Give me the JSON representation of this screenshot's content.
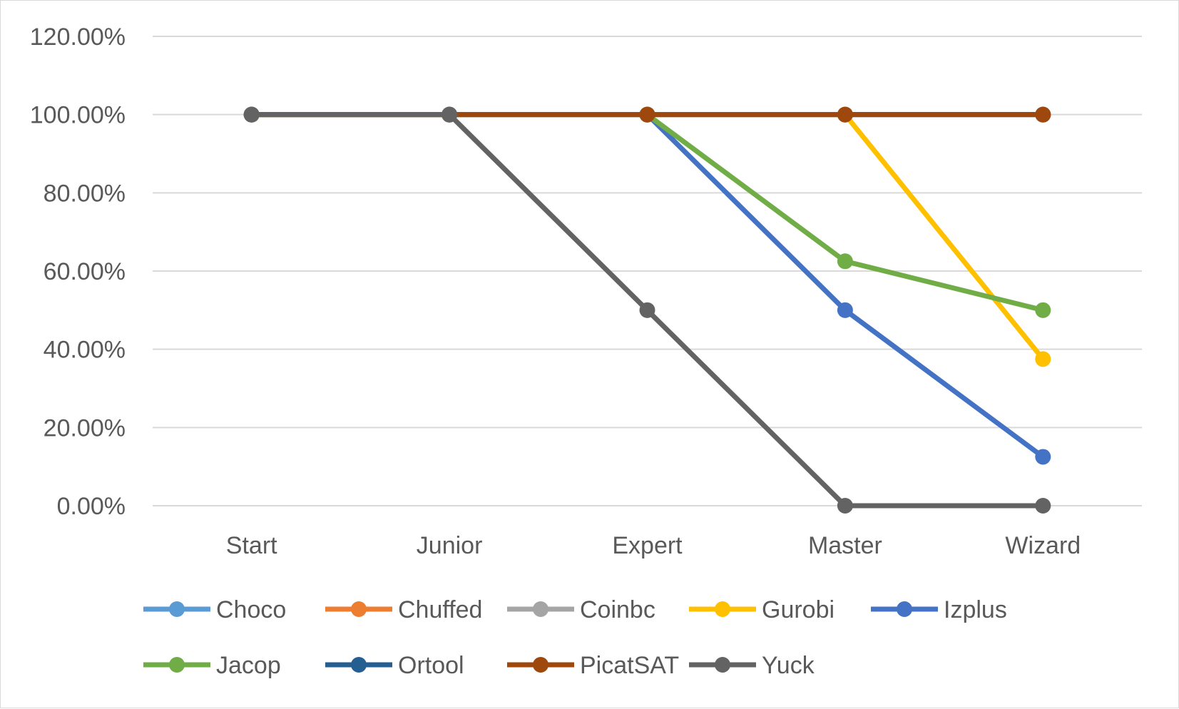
{
  "chart_data": {
    "type": "line",
    "title": "",
    "xlabel": "",
    "ylabel": "",
    "categories": [
      "Start",
      "Junior",
      "Expert",
      "Master",
      "Wizard"
    ],
    "ylim": [
      0,
      1.2
    ],
    "yticks": [
      0,
      0.2,
      0.4,
      0.6,
      0.8,
      1.0,
      1.2
    ],
    "ytick_labels": [
      "0.00%",
      "20.00%",
      "40.00%",
      "60.00%",
      "80.00%",
      "100.00%",
      "120.00%"
    ],
    "grid": "horizontal",
    "legend_position": "bottom",
    "series": [
      {
        "name": "Choco",
        "color": "#5b9bd5",
        "values": [
          1.0,
          1.0,
          1.0,
          1.0,
          1.0
        ]
      },
      {
        "name": "Chuffed",
        "color": "#ed7d31",
        "values": [
          1.0,
          1.0,
          1.0,
          1.0,
          1.0
        ]
      },
      {
        "name": "Coinbc",
        "color": "#a5a5a5",
        "values": [
          1.0,
          1.0,
          1.0,
          1.0,
          1.0
        ]
      },
      {
        "name": "Gurobi",
        "color": "#ffc000",
        "values": [
          1.0,
          1.0,
          1.0,
          1.0,
          0.375
        ]
      },
      {
        "name": "Izplus",
        "color": "#4472c4",
        "values": [
          1.0,
          1.0,
          1.0,
          0.5,
          0.125
        ]
      },
      {
        "name": "Jacop",
        "color": "#70ad47",
        "values": [
          1.0,
          1.0,
          1.0,
          0.625,
          0.5
        ]
      },
      {
        "name": "Ortool",
        "color": "#255e91",
        "values": [
          1.0,
          1.0,
          1.0,
          1.0,
          1.0
        ]
      },
      {
        "name": "PicatSAT",
        "color": "#9e480e",
        "values": [
          1.0,
          1.0,
          1.0,
          1.0,
          1.0
        ]
      },
      {
        "name": "Yuck",
        "color": "#636363",
        "values": [
          1.0,
          1.0,
          0.5,
          0.0,
          0.0
        ]
      }
    ],
    "draw_order": [
      "Choco",
      "Chuffed",
      "Coinbc",
      "Ortool",
      "Gurobi",
      "Izplus",
      "Jacop",
      "PicatSAT",
      "Yuck"
    ]
  }
}
